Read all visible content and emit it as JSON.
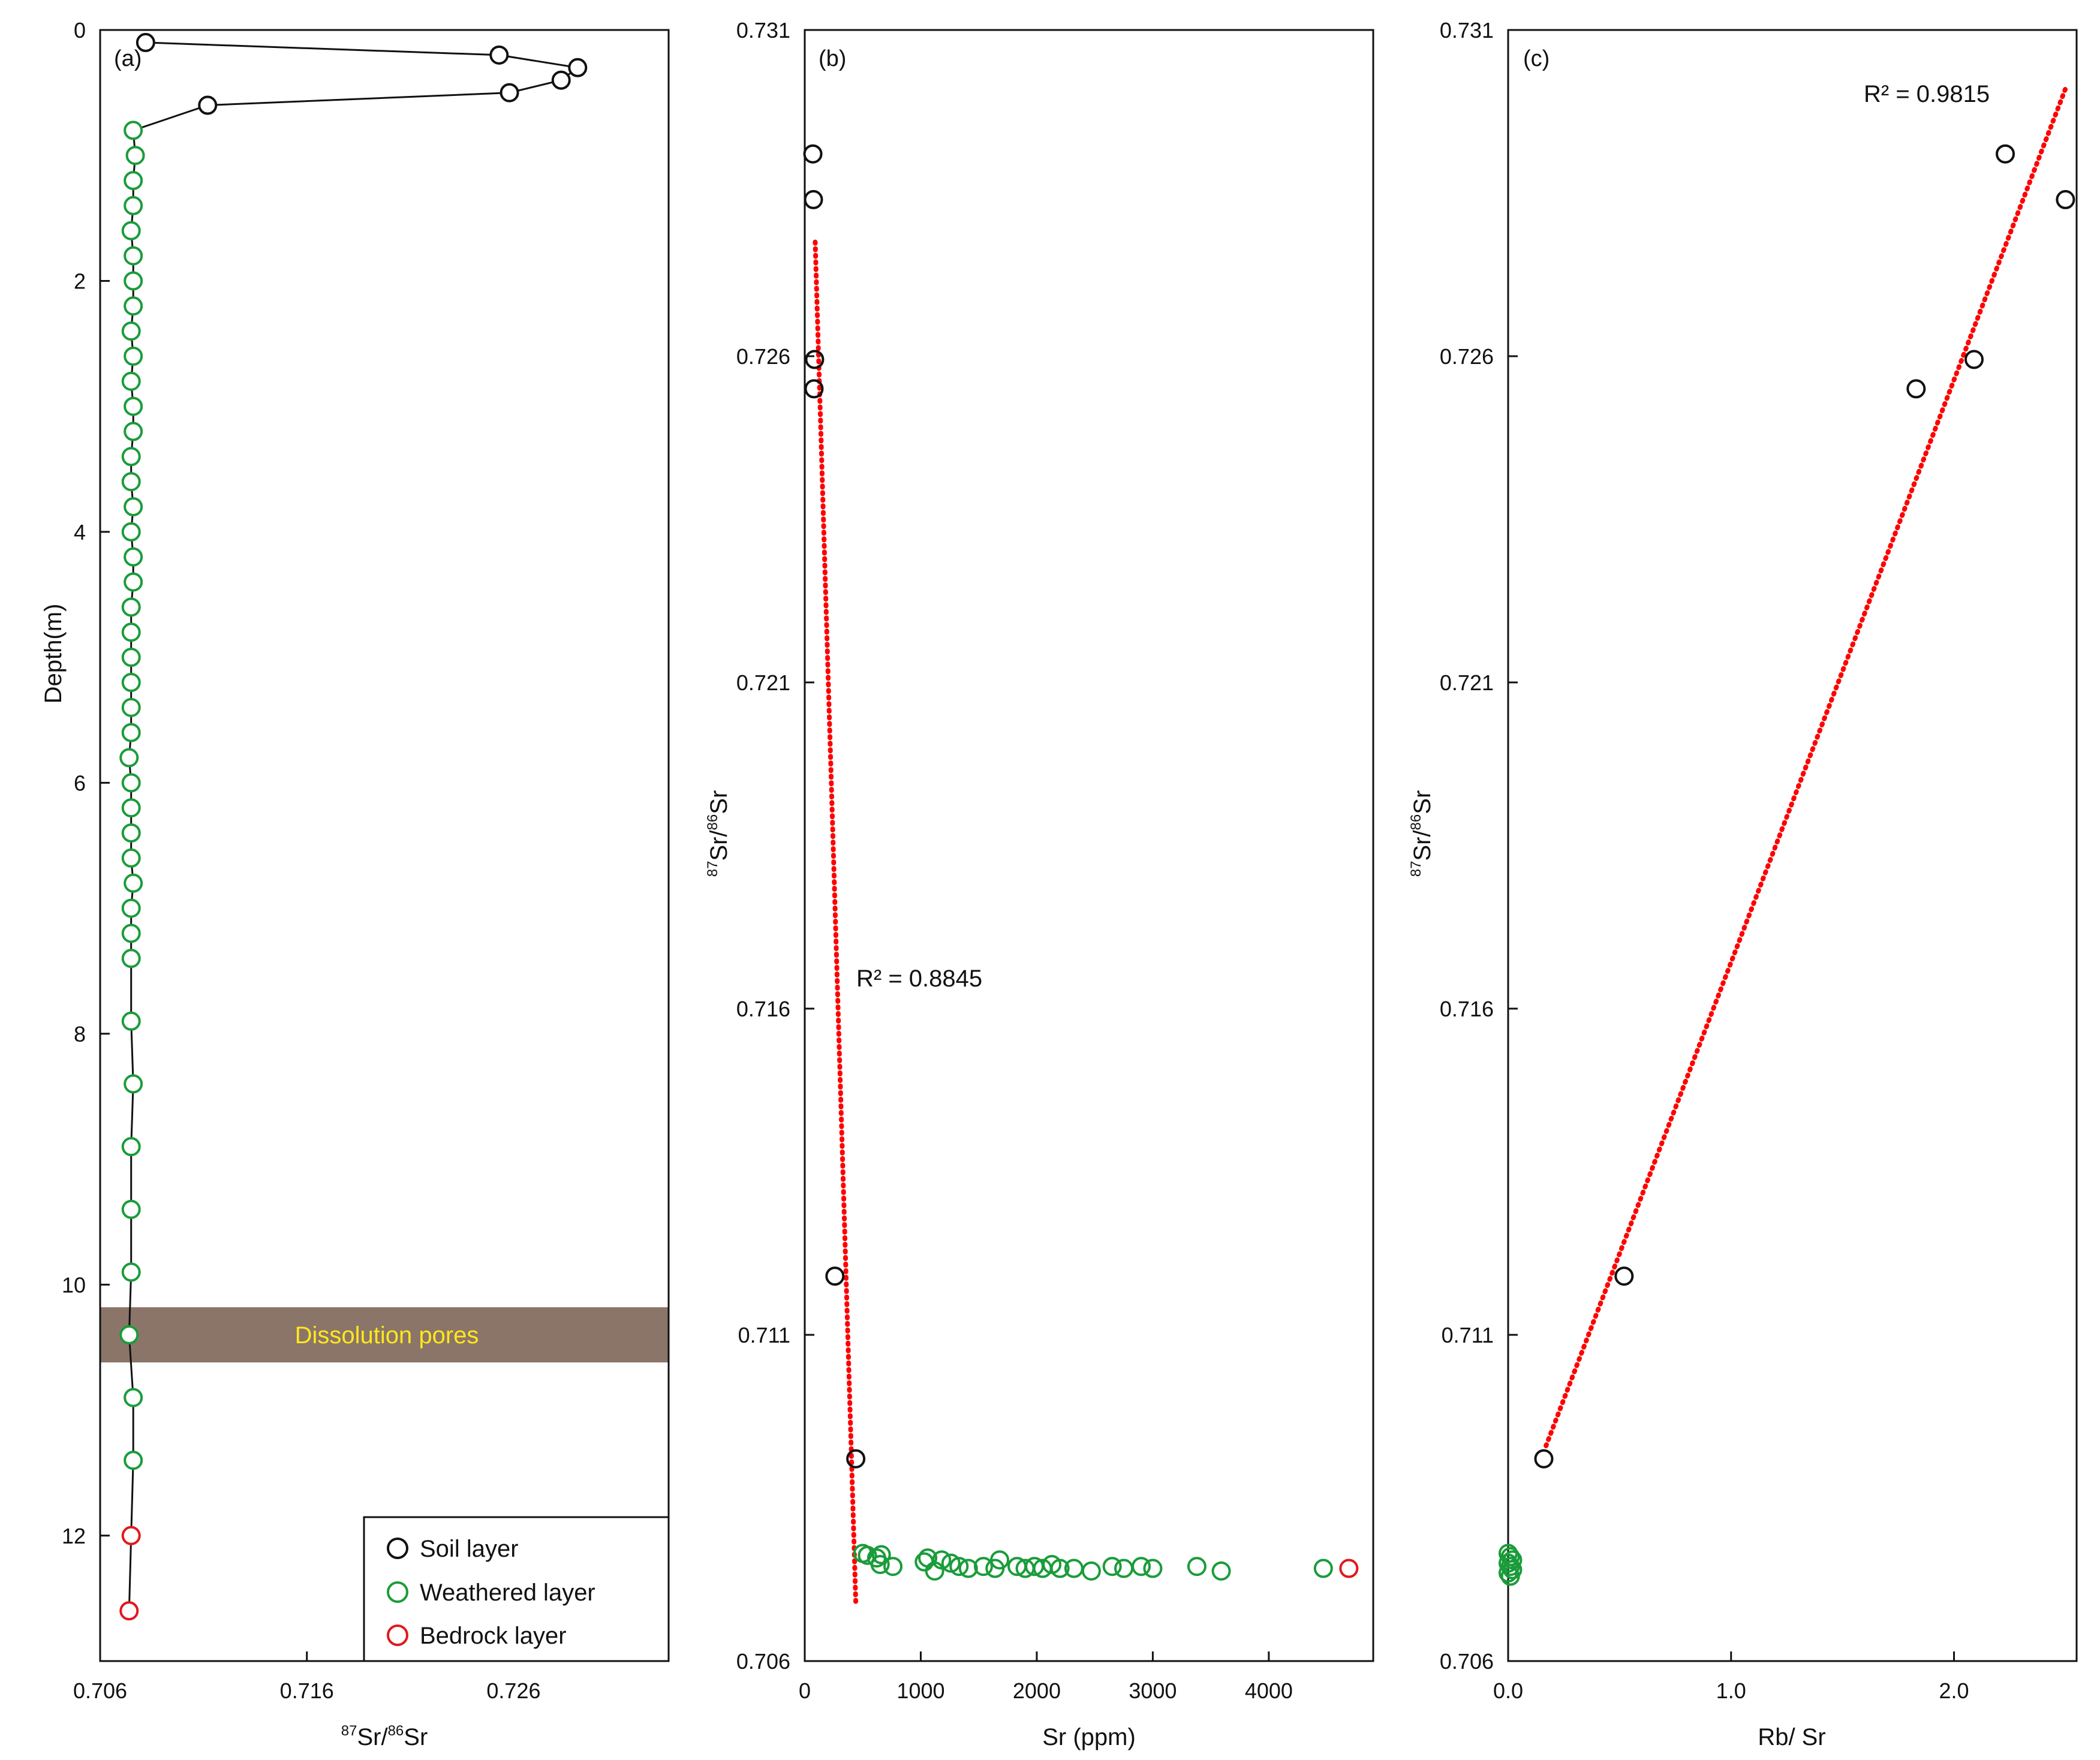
{
  "colors": {
    "soil": "#111111",
    "weathered": "#1a9c3a",
    "bedrock": "#e3171b",
    "trend": "#ff0000",
    "band": "#8b7569",
    "band_text": "#ffe81a"
  },
  "chart_data": [
    {
      "type": "line",
      "panel_label": "(a)",
      "xlabel_sup1": "87",
      "xlabel_mid": "Sr/",
      "xlabel_sup2": "86",
      "xlabel_end": "Sr",
      "ylabel": "Depth(m)",
      "xlim": [
        0.706,
        0.7335
      ],
      "ylim": [
        13,
        0
      ],
      "y_inverted": true,
      "x_ticks": [
        "0.706",
        "0.716",
        "0.726"
      ],
      "x_tick_values": [
        0.706,
        0.716,
        0.726
      ],
      "y_ticks": [
        "0",
        "2",
        "4",
        "6",
        "8",
        "10",
        "12"
      ],
      "y_tick_values": [
        0,
        2,
        4,
        6,
        8,
        10,
        12
      ],
      "band": {
        "y_top": 10.2,
        "y_bottom": 10.65,
        "label": "Dissolution pores"
      },
      "legend": {
        "position": "bottom-right",
        "entries": [
          "Soil layer",
          "Weathered layer",
          "Bedrock layer"
        ]
      },
      "series": [
        {
          "name": "Soil layer",
          "color_key": "soil",
          "points": [
            [
              0.7082,
              0.1
            ],
            [
              0.7253,
              0.2
            ],
            [
              0.7291,
              0.3
            ],
            [
              0.7283,
              0.4
            ],
            [
              0.7258,
              0.5
            ],
            [
              0.7112,
              0.6
            ]
          ]
        },
        {
          "name": "Weathered layer",
          "color_key": "weathered",
          "points": [
            [
              0.7076,
              0.8
            ],
            [
              0.7077,
              1.0
            ],
            [
              0.7076,
              1.2
            ],
            [
              0.7076,
              1.4
            ],
            [
              0.7075,
              1.6
            ],
            [
              0.7076,
              1.8
            ],
            [
              0.7076,
              2.0
            ],
            [
              0.7076,
              2.2
            ],
            [
              0.7075,
              2.4
            ],
            [
              0.7076,
              2.6
            ],
            [
              0.7075,
              2.8
            ],
            [
              0.7076,
              3.0
            ],
            [
              0.7076,
              3.2
            ],
            [
              0.7075,
              3.4
            ],
            [
              0.7075,
              3.6
            ],
            [
              0.7076,
              3.8
            ],
            [
              0.7075,
              4.0
            ],
            [
              0.7076,
              4.2
            ],
            [
              0.7076,
              4.4
            ],
            [
              0.7075,
              4.6
            ],
            [
              0.7075,
              4.8
            ],
            [
              0.7075,
              5.0
            ],
            [
              0.7075,
              5.2
            ],
            [
              0.7075,
              5.4
            ],
            [
              0.7075,
              5.6
            ],
            [
              0.7074,
              5.8
            ],
            [
              0.7075,
              6.0
            ],
            [
              0.7075,
              6.2
            ],
            [
              0.7075,
              6.4
            ],
            [
              0.7075,
              6.6
            ],
            [
              0.7076,
              6.8
            ],
            [
              0.7075,
              7.0
            ],
            [
              0.7075,
              7.2
            ],
            [
              0.7075,
              7.4
            ],
            [
              0.7075,
              7.9
            ],
            [
              0.7076,
              8.4
            ],
            [
              0.7075,
              8.9
            ],
            [
              0.7075,
              9.4
            ],
            [
              0.7075,
              9.9
            ],
            [
              0.7074,
              10.4
            ],
            [
              0.7076,
              10.9
            ],
            [
              0.7076,
              11.4
            ]
          ]
        },
        {
          "name": "Bedrock layer",
          "color_key": "bedrock",
          "points": [
            [
              0.7075,
              12.0
            ],
            [
              0.7074,
              12.6
            ]
          ]
        }
      ]
    },
    {
      "type": "scatter",
      "panel_label": "(b)",
      "xlabel": "Sr (ppm)",
      "ylabel_sup1": "87",
      "ylabel_mid": "Sr/",
      "ylabel_sup2": "86",
      "ylabel_end": "Sr",
      "xlim": [
        0,
        4900
      ],
      "ylim": [
        0.706,
        0.731
      ],
      "x_ticks": [
        "0",
        "1000",
        "2000",
        "3000",
        "4000"
      ],
      "x_tick_values": [
        0,
        1000,
        2000,
        3000,
        4000
      ],
      "y_ticks": [
        "0.706",
        "0.711",
        "0.716",
        "0.721",
        "0.726",
        "0.731"
      ],
      "y_tick_values": [
        0.706,
        0.711,
        0.716,
        0.721,
        0.726,
        0.731
      ],
      "trendline": {
        "x": [
          90,
          440
        ],
        "y": [
          0.72775,
          0.7069
        ],
        "r2_label": "R² = 0.8845"
      },
      "series": [
        {
          "name": "Soil layer",
          "color_key": "soil",
          "x": [
            70,
            75,
            85,
            80,
            260,
            440
          ],
          "y": [
            0.7291,
            0.7284,
            0.72595,
            0.7255,
            0.7119,
            0.7091
          ]
        },
        {
          "name": "Weathered layer",
          "color_key": "weathered",
          "x": [
            500,
            540,
            620,
            660,
            650,
            760,
            1030,
            1060,
            1120,
            1180,
            1260,
            1330,
            1410,
            1540,
            1640,
            1680,
            1830,
            1900,
            1980,
            2050,
            2130,
            2200,
            2320,
            2470,
            2650,
            2750,
            2900,
            3000,
            3380,
            3590,
            4470
          ],
          "y": [
            0.70765,
            0.70762,
            0.70758,
            0.70763,
            0.70748,
            0.70745,
            0.70752,
            0.70758,
            0.70738,
            0.70755,
            0.7075,
            0.70745,
            0.70742,
            0.70745,
            0.70742,
            0.70755,
            0.70745,
            0.70742,
            0.70745,
            0.70742,
            0.70748,
            0.70742,
            0.70742,
            0.70738,
            0.70745,
            0.70742,
            0.70745,
            0.70742,
            0.70745,
            0.70738,
            0.70742
          ]
        },
        {
          "name": "Bedrock layer",
          "color_key": "bedrock",
          "x": [
            4690
          ],
          "y": [
            0.70742
          ]
        }
      ]
    },
    {
      "type": "scatter",
      "panel_label": "(c)",
      "xlabel": "Rb/ Sr",
      "ylabel_sup1": "87",
      "ylabel_mid": "Sr/",
      "ylabel_sup2": "86",
      "ylabel_end": "Sr",
      "xlim": [
        0,
        2.55
      ],
      "ylim": [
        0.706,
        0.731
      ],
      "x_ticks": [
        "0.0",
        "1.0",
        "2.0"
      ],
      "x_tick_values": [
        0,
        1,
        2
      ],
      "y_ticks": [
        "0.706",
        "0.711",
        "0.716",
        "0.721",
        "0.726",
        "0.731"
      ],
      "y_tick_values": [
        0.706,
        0.711,
        0.716,
        0.721,
        0.726,
        0.731
      ],
      "trendline": {
        "x": [
          0.17,
          2.5
        ],
        "y": [
          0.7093,
          0.7301
        ],
        "r2_label": "R² = 0.9815"
      },
      "series": [
        {
          "name": "Soil layer",
          "color_key": "soil",
          "x": [
            0.16,
            0.52,
            1.83,
            2.09,
            2.23,
            2.5
          ],
          "y": [
            0.7091,
            0.7119,
            0.7255,
            0.72595,
            0.7291,
            0.7284
          ]
        },
        {
          "name": "Weathered layer",
          "color_key": "weathered",
          "x": [
            0.0,
            0.01,
            0.02,
            0.0,
            0.01,
            0.02,
            0.0,
            0.01
          ],
          "y": [
            0.70765,
            0.7076,
            0.70755,
            0.7075,
            0.70745,
            0.7074,
            0.70735,
            0.7073
          ]
        }
      ]
    }
  ]
}
